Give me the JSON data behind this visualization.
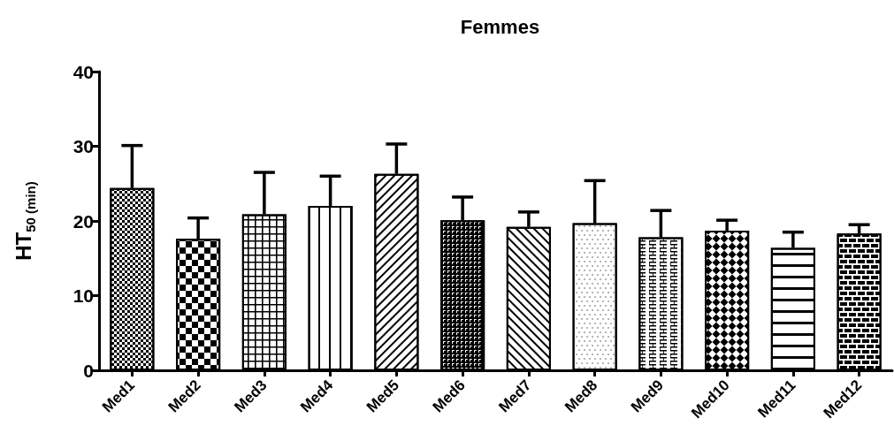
{
  "chart_data": {
    "type": "bar",
    "title": "Femmes",
    "ylabel": "HT$_{50 (min)}$",
    "categories": [
      "Med1",
      "Med2",
      "Med3",
      "Med4",
      "Med5",
      "Med6",
      "Med7",
      "Med8",
      "Med9",
      "Med10",
      "Med11",
      "Med12"
    ],
    "values": [
      24.4,
      17.6,
      20.9,
      22.0,
      26.3,
      20.1,
      19.2,
      19.7,
      17.8,
      18.7,
      16.4,
      18.3
    ],
    "errors": [
      [
        24.4,
        30.1
      ],
      [
        17.6,
        20.4
      ],
      [
        20.9,
        26.5
      ],
      [
        22.0,
        26.0
      ],
      [
        26.3,
        30.3
      ],
      [
        20.1,
        23.2
      ],
      [
        19.2,
        21.2
      ],
      [
        19.7,
        25.4
      ],
      [
        17.8,
        21.4
      ],
      [
        18.7,
        20.1
      ],
      [
        16.4,
        18.5
      ],
      [
        18.3,
        19.5
      ]
    ],
    "color": "#ffffff",
    "ylim": [
      0,
      40
    ],
    "yticks": [
      0,
      10,
      20,
      30,
      40
    ],
    "grid": false
  }
}
